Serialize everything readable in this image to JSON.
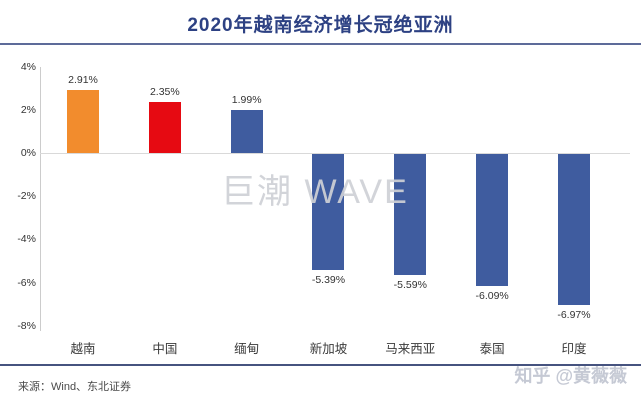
{
  "header": {
    "title": "2020年越南经济增长冠绝亚洲"
  },
  "chart_data": {
    "type": "bar",
    "title": "2020年越南经济增长冠绝亚洲",
    "categories": [
      "越南",
      "中国",
      "缅甸",
      "新加坡",
      "马来西亚",
      "泰国",
      "印度"
    ],
    "values": [
      2.91,
      2.35,
      1.99,
      -5.39,
      -5.59,
      -6.09,
      -6.97
    ],
    "data_labels": [
      "2.91%",
      "2.35%",
      "1.99%",
      "-5.39%",
      "-5.59%",
      "-6.09%",
      "-6.97%"
    ],
    "bar_colors": [
      "#f28c2d",
      "#e60a12",
      "#3f5c9f",
      "#3f5c9f",
      "#3f5c9f",
      "#3f5c9f",
      "#3f5c9f"
    ],
    "xlabel": "",
    "ylabel": "",
    "ylim": [
      -8,
      4
    ],
    "yticks": [
      "4%",
      "2%",
      "0%",
      "-2%",
      "-4%",
      "-6%",
      "-8%"
    ],
    "ytick_values": [
      4,
      2,
      0,
      -2,
      -4,
      -6,
      -8
    ],
    "grid": "zero-line-only",
    "legend": "none"
  },
  "watermarks": {
    "chart": "巨潮 WAVE",
    "footer": "知乎 @黄薇薇"
  },
  "footer": {
    "source": "来源：Wind、东北证券"
  },
  "colors": {
    "title": "#2d4183",
    "title_rule": "#5d6b99",
    "footer_rule": "#46537f",
    "bar_orange": "#f28c2d",
    "bar_red": "#e60a12",
    "bar_blue": "#3f5c9f",
    "gridline": "#d9d9d9",
    "watermark_gray": "#cfd1d6"
  }
}
